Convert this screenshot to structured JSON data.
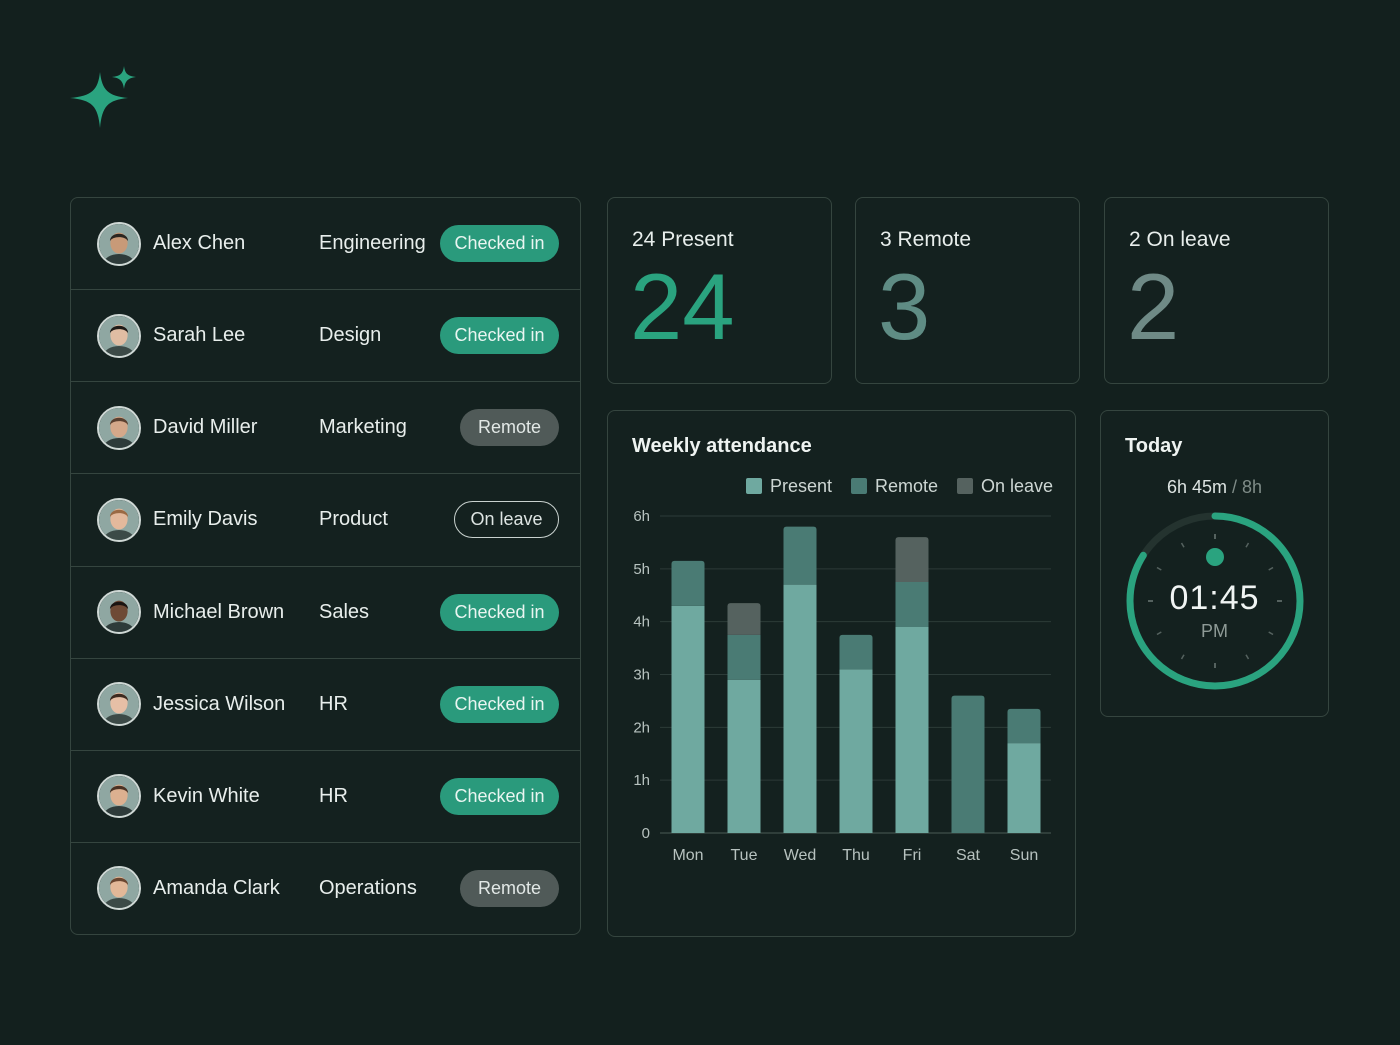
{
  "employees": [
    {
      "name": "Alex Chen",
      "department": "Engineering",
      "status": "Checked in",
      "status_type": "checked",
      "avatar": {
        "skin": "#c89a78",
        "hair": "#2a2520"
      }
    },
    {
      "name": "Sarah Lee",
      "department": "Design",
      "status": "Checked in",
      "status_type": "checked",
      "avatar": {
        "skin": "#e0bda3",
        "hair": "#1e1a17"
      }
    },
    {
      "name": "David Miller",
      "department": "Marketing",
      "status": "Remote",
      "status_type": "remote",
      "avatar": {
        "skin": "#d4a88a",
        "hair": "#5a4030"
      }
    },
    {
      "name": "Emily Davis",
      "department": "Product",
      "status": "On leave",
      "status_type": "leave",
      "avatar": {
        "skin": "#e3b99c",
        "hair": "#9a6a44"
      }
    },
    {
      "name": "Michael Brown",
      "department": "Sales",
      "status": "Checked in",
      "status_type": "checked",
      "avatar": {
        "skin": "#6e4a35",
        "hair": "#1a1411"
      }
    },
    {
      "name": "Jessica Wilson",
      "department": "HR",
      "status": "Checked in",
      "status_type": "checked",
      "avatar": {
        "skin": "#e6bfa6",
        "hair": "#3d2a20"
      }
    },
    {
      "name": "Kevin White",
      "department": "HR",
      "status": "Checked in",
      "status_type": "checked",
      "avatar": {
        "skin": "#dcb090",
        "hair": "#4a3224"
      }
    },
    {
      "name": "Amanda Clark",
      "department": "Operations",
      "status": "Remote",
      "status_type": "remote",
      "avatar": {
        "skin": "#e2b898",
        "hair": "#6a4630"
      }
    }
  ],
  "stats": [
    {
      "label": "24 Present",
      "value": "24",
      "color": "#2aa37f"
    },
    {
      "label": "3 Remote",
      "value": "3",
      "color": "#5f8c84"
    },
    {
      "label": "2 On leave",
      "value": "2",
      "color": "#6f8a86"
    }
  ],
  "chart": {
    "title": "Weekly attendance"
  },
  "chart_data": {
    "type": "bar",
    "stacked": true,
    "categories": [
      "Mon",
      "Tue",
      "Wed",
      "Thu",
      "Fri",
      "Sat",
      "Sun"
    ],
    "series": [
      {
        "name": "Present",
        "color": "#6fa9a0",
        "values": [
          4.3,
          2.9,
          4.7,
          3.1,
          3.9,
          0,
          1.7
        ]
      },
      {
        "name": "Remote",
        "color": "#4a7b74",
        "values": [
          0.85,
          0.85,
          1.1,
          0.65,
          0.85,
          2.6,
          0.65
        ]
      },
      {
        "name": "On leave",
        "color": "#55625f",
        "values": [
          0,
          0.6,
          0,
          0,
          0.85,
          0,
          0
        ]
      }
    ],
    "yticks": [
      "0",
      "1h",
      "2h",
      "3h",
      "4h",
      "5h",
      "6h"
    ],
    "ylim": [
      0,
      6
    ],
    "grid": true,
    "legend": "top-right"
  },
  "today": {
    "title": "Today",
    "worked": "6h 45m",
    "separator": "/",
    "target": "8h",
    "progress": 0.84,
    "time": "01:45",
    "ampm": "PM",
    "accent": "#2aa37f"
  }
}
